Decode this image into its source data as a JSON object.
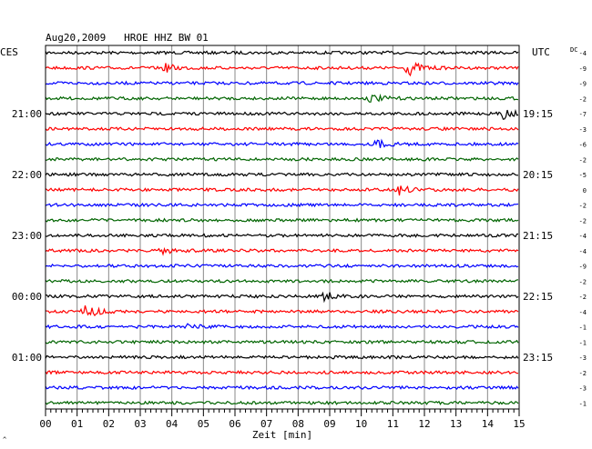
{
  "chart_data": {
    "type": "line",
    "title": "Aug20,2009   HROE HHZ BW 01",
    "left_label": "CES",
    "right_label": "UTC",
    "dc_label": "DC",
    "xlabel": "Zeit [min]",
    "xlim": [
      0,
      15
    ],
    "x_ticks": [
      "00",
      "01",
      "02",
      "03",
      "04",
      "05",
      "06",
      "07",
      "08",
      "09",
      "10",
      "11",
      "12",
      "13",
      "14",
      "15"
    ],
    "left_times": [
      {
        "label": "21:00",
        "trace": 4
      },
      {
        "label": "22:00",
        "trace": 8
      },
      {
        "label": "23:00",
        "trace": 12
      },
      {
        "label": "00:00",
        "trace": 16
      },
      {
        "label": "01:00",
        "trace": 20
      }
    ],
    "right_times": [
      {
        "label": "19:15",
        "trace": 4
      },
      {
        "label": "20:15",
        "trace": 8
      },
      {
        "label": "21:15",
        "trace": 12
      },
      {
        "label": "22:15",
        "trace": 16
      },
      {
        "label": "23:15",
        "trace": 20
      }
    ],
    "trace_colors": [
      "#000000",
      "#ff0000",
      "#0000ff",
      "#006400"
    ],
    "dc_values": [
      "-4",
      "-9",
      "-9",
      "-2",
      "-7",
      "-3",
      "-6",
      "-2",
      "-5",
      "0",
      "-2",
      "-2",
      "-4",
      "-4",
      "-9",
      "-2",
      "-2",
      "-4",
      "-1",
      "-1",
      "-3",
      "-2",
      "-3",
      "-1"
    ],
    "events": [
      {
        "trace": 1,
        "minute": 3.8,
        "amplitude": 4
      },
      {
        "trace": 1,
        "minute": 11.5,
        "amplitude": 8
      },
      {
        "trace": 3,
        "minute": 10.3,
        "amplitude": 4
      },
      {
        "trace": 4,
        "minute": 14.5,
        "amplitude": 5
      },
      {
        "trace": 6,
        "minute": 10.5,
        "amplitude": 4
      },
      {
        "trace": 9,
        "minute": 11.2,
        "amplitude": 5
      },
      {
        "trace": 13,
        "minute": 3.6,
        "amplitude": 4
      },
      {
        "trace": 16,
        "minute": 8.8,
        "amplitude": 6
      },
      {
        "trace": 17,
        "minute": 1.2,
        "amplitude": 9
      },
      {
        "trace": 18,
        "minute": 4.5,
        "amplitude": 3
      }
    ],
    "grid": true
  }
}
